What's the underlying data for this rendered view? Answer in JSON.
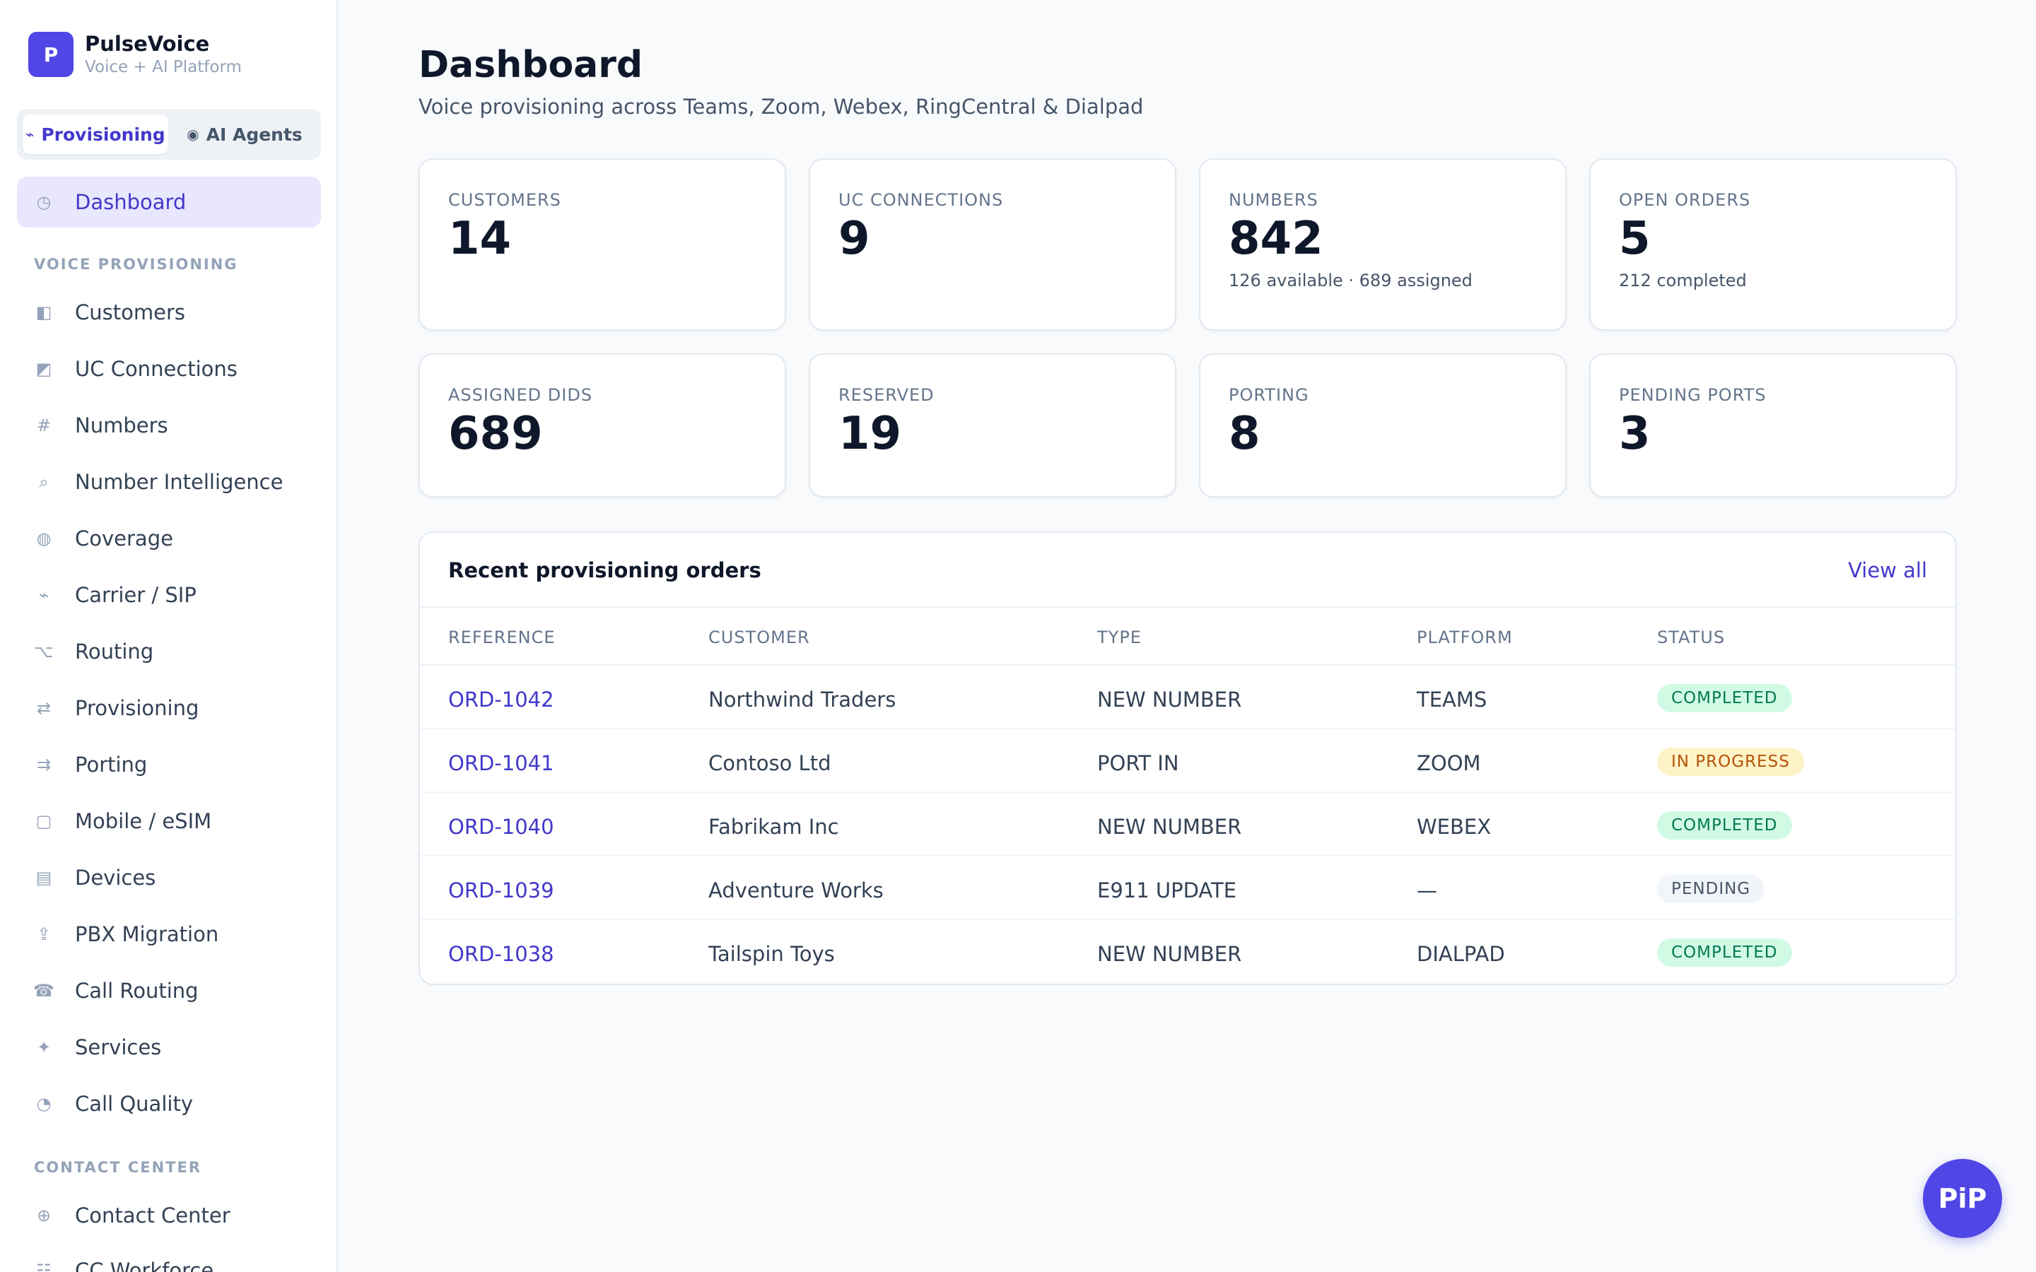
{
  "brand": {
    "logo_letter": "P",
    "name": "PulseVoice",
    "subtitle": "Voice + AI Platform"
  },
  "mode_tabs": [
    {
      "icon": "⌁",
      "label": "Provisioning",
      "active": true
    },
    {
      "icon": "◉",
      "label": "AI Agents",
      "active": false
    }
  ],
  "sidebar": {
    "dashboard": {
      "icon": "◷",
      "label": "Dashboard"
    },
    "section_voice": "VOICE PROVISIONING",
    "voice_items": [
      {
        "icon": "◧",
        "label": "Customers"
      },
      {
        "icon": "◩",
        "label": "UC Connections"
      },
      {
        "icon": "#",
        "label": "Numbers"
      },
      {
        "icon": "⌕",
        "label": "Number Intelligence"
      },
      {
        "icon": "◍",
        "label": "Coverage"
      },
      {
        "icon": "⌁",
        "label": "Carrier / SIP"
      },
      {
        "icon": "⌥",
        "label": "Routing"
      },
      {
        "icon": "⇄",
        "label": "Provisioning"
      },
      {
        "icon": "⇉",
        "label": "Porting"
      },
      {
        "icon": "▢",
        "label": "Mobile / eSIM"
      },
      {
        "icon": "▤",
        "label": "Devices"
      },
      {
        "icon": "⇪",
        "label": "PBX Migration"
      },
      {
        "icon": "☎",
        "label": "Call Routing"
      },
      {
        "icon": "✦",
        "label": "Services"
      },
      {
        "icon": "◔",
        "label": "Call Quality"
      }
    ],
    "section_contact": "CONTACT CENTER",
    "contact_items": [
      {
        "icon": "⊕",
        "label": "Contact Center"
      },
      {
        "icon": "☷",
        "label": "CC Workforce"
      }
    ]
  },
  "header": {
    "title": "Dashboard",
    "subtitle": "Voice provisioning across Teams, Zoom, Webex, RingCentral & Dialpad"
  },
  "stats": [
    {
      "label": "CUSTOMERS",
      "value": "14",
      "note": ""
    },
    {
      "label": "UC CONNECTIONS",
      "value": "9",
      "note": ""
    },
    {
      "label": "NUMBERS",
      "value": "842",
      "note": "126 available · 689 assigned"
    },
    {
      "label": "OPEN ORDERS",
      "value": "5",
      "note": "212 completed"
    },
    {
      "label": "ASSIGNED DIDS",
      "value": "689",
      "note": ""
    },
    {
      "label": "RESERVED",
      "value": "19",
      "note": ""
    },
    {
      "label": "PORTING",
      "value": "8",
      "note": ""
    },
    {
      "label": "PENDING PORTS",
      "value": "3",
      "note": ""
    }
  ],
  "orders": {
    "title": "Recent provisioning orders",
    "view_all": "View all",
    "columns": [
      "REFERENCE",
      "CUSTOMER",
      "TYPE",
      "PLATFORM",
      "STATUS"
    ],
    "rows": [
      {
        "reference": "ORD-1042",
        "customer": "Northwind Traders",
        "type": "NEW NUMBER",
        "platform": "TEAMS",
        "status": "COMPLETED"
      },
      {
        "reference": "ORD-1041",
        "customer": "Contoso Ltd",
        "type": "PORT IN",
        "platform": "ZOOM",
        "status": "IN PROGRESS"
      },
      {
        "reference": "ORD-1040",
        "customer": "Fabrikam Inc",
        "type": "NEW NUMBER",
        "platform": "WEBEX",
        "status": "COMPLETED"
      },
      {
        "reference": "ORD-1039",
        "customer": "Adventure Works",
        "type": "E911 UPDATE",
        "platform": "—",
        "status": "PENDING"
      },
      {
        "reference": "ORD-1038",
        "customer": "Tailspin Toys",
        "type": "NEW NUMBER",
        "platform": "DIALPAD",
        "status": "COMPLETED"
      }
    ]
  },
  "pip_button": {
    "label": "PiP"
  },
  "colors": {
    "accent": "#4f46e5",
    "accent_text": "#4338ca",
    "completed": "#047857",
    "in_progress": "#b45309",
    "pending": "#475569"
  }
}
